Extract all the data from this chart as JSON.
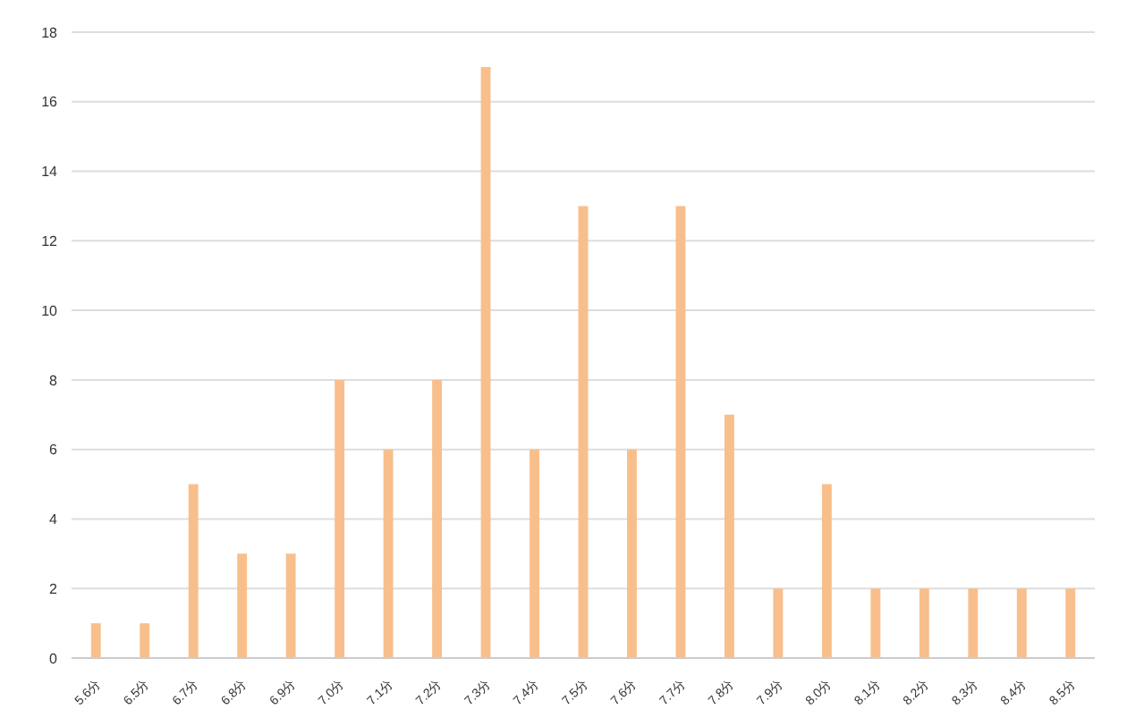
{
  "chart_data": {
    "type": "bar",
    "categories": [
      "5.6分",
      "6.5分",
      "6.7分",
      "6.8分",
      "6.9分",
      "7.0分",
      "7.1分",
      "7.2分",
      "7.3分",
      "7.4分",
      "7.5分",
      "7.6分",
      "7.7分",
      "7.8分",
      "7.9分",
      "8.0分",
      "8.1分",
      "8.2分",
      "8.3分",
      "8.4分",
      "8.5分"
    ],
    "values": [
      1,
      1,
      5,
      3,
      3,
      8,
      6,
      8,
      17,
      6,
      13,
      6,
      13,
      7,
      2,
      5,
      2,
      2,
      2,
      2,
      2
    ],
    "color": "#f8bf8c",
    "ylim": [
      0,
      18
    ],
    "yticks": [
      0,
      2,
      4,
      6,
      8,
      10,
      12,
      14,
      16,
      18
    ],
    "grid": "y"
  }
}
